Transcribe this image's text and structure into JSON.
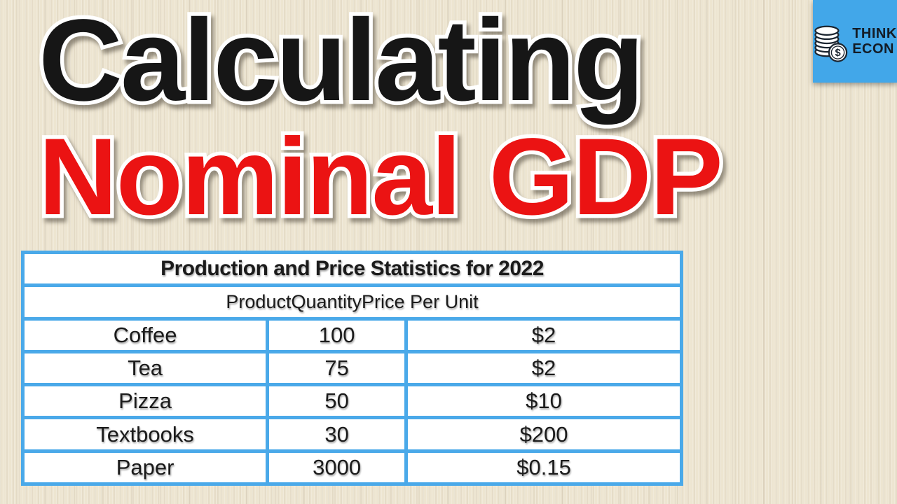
{
  "header": {
    "title_line1": "Calculating",
    "title_line2": "Nominal GDP"
  },
  "logo": {
    "brand_line1": "THINK",
    "brand_line2": "ECON",
    "icon": "coin-stack-dollar-icon"
  },
  "table": {
    "title": "Production and Price Statistics for 2022",
    "columns": [
      "Product",
      "Quantity",
      "Price Per Unit"
    ],
    "rows": [
      [
        "Coffee",
        "100",
        "$2"
      ],
      [
        "Tea",
        "75",
        "$2"
      ],
      [
        "Pizza",
        "50",
        "$10"
      ],
      [
        "Textbooks",
        "30",
        "$200"
      ],
      [
        "Paper",
        "3000",
        "$0.15"
      ]
    ]
  },
  "colors": {
    "background": "#EDE5D1",
    "title_black": "#161616",
    "title_red": "#EB1313",
    "table_border_blue": "#4AA9E9",
    "logo_background_blue": "#42A7E9",
    "logo_text": "#131C26"
  }
}
